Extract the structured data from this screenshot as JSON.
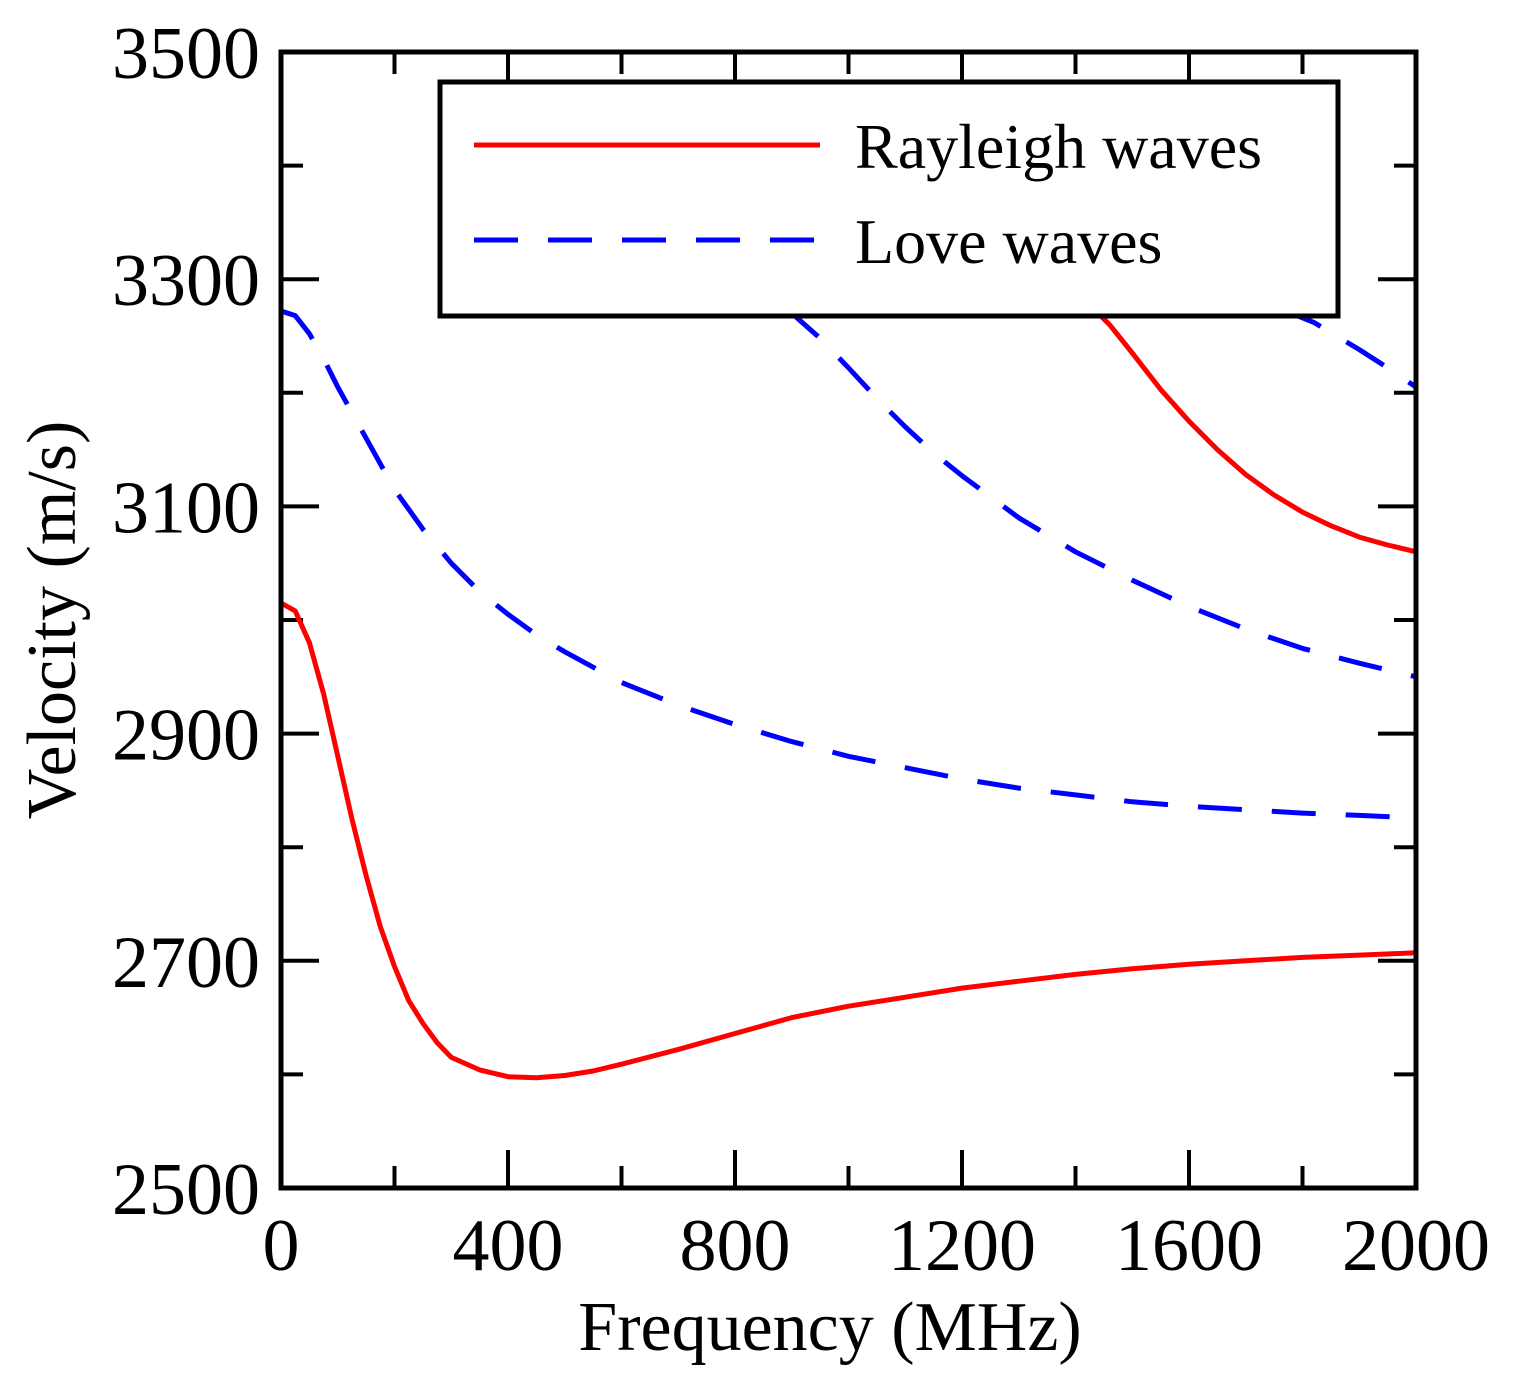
{
  "chart_data": {
    "type": "line",
    "title": "",
    "xlabel": "Frequency (MHz)",
    "ylabel": "Velocity (m/s)",
    "xlim": [
      0,
      2000
    ],
    "ylim": [
      2500,
      3500
    ],
    "xticks": [
      0,
      400,
      800,
      1200,
      1600,
      2000
    ],
    "xtick_labels": [
      "0",
      "400",
      "800",
      "1200",
      "1600",
      "2000"
    ],
    "yticks": [
      2500,
      2700,
      2900,
      3100,
      3300,
      3500
    ],
    "ytick_labels": [
      "2500",
      "2700",
      "2900",
      "3100",
      "3300",
      "3500"
    ],
    "grid": false,
    "legend_position": "top-right",
    "series": [
      {
        "name": "Rayleigh waves",
        "legend_label": "Rayleigh waves",
        "color": "#ff0000",
        "style": "solid",
        "segments": [
          [
            [
              0,
              3015
            ],
            [
              25,
              3008
            ],
            [
              50,
              2980
            ],
            [
              75,
              2935
            ],
            [
              100,
              2880
            ],
            [
              125,
              2825
            ],
            [
              150,
              2775
            ],
            [
              175,
              2730
            ],
            [
              200,
              2695
            ],
            [
              225,
              2665
            ],
            [
              250,
              2645
            ],
            [
              275,
              2628
            ],
            [
              300,
              2615
            ],
            [
              350,
              2604
            ],
            [
              400,
              2598
            ],
            [
              450,
              2597
            ],
            [
              500,
              2599
            ],
            [
              550,
              2603
            ],
            [
              600,
              2609
            ],
            [
              700,
              2622
            ],
            [
              800,
              2636
            ],
            [
              900,
              2650
            ],
            [
              1000,
              2660
            ],
            [
              1100,
              2668
            ],
            [
              1200,
              2676
            ],
            [
              1300,
              2682
            ],
            [
              1400,
              2688
            ],
            [
              1500,
              2693
            ],
            [
              1600,
              2697
            ],
            [
              1700,
              2700
            ],
            [
              1800,
              2703
            ],
            [
              1900,
              2705
            ],
            [
              2000,
              2707
            ]
          ],
          [
            [
              1420,
              3272
            ],
            [
              1440,
              3270
            ],
            [
              1460,
              3260
            ],
            [
              1500,
              3235
            ],
            [
              1550,
              3203
            ],
            [
              1600,
              3175
            ],
            [
              1650,
              3150
            ],
            [
              1700,
              3128
            ],
            [
              1750,
              3110
            ],
            [
              1800,
              3095
            ],
            [
              1850,
              3083
            ],
            [
              1900,
              3073
            ],
            [
              1950,
              3066
            ],
            [
              2000,
              3060
            ]
          ]
        ]
      },
      {
        "name": "Love waves",
        "legend_label": "Love waves",
        "color": "#0000ff",
        "style": "dashed",
        "segments": [
          [
            [
              0,
              3272
            ],
            [
              25,
              3268
            ],
            [
              50,
              3252
            ],
            [
              75,
              3230
            ],
            [
              100,
              3205
            ],
            [
              150,
              3160
            ],
            [
              200,
              3115
            ],
            [
              250,
              3080
            ],
            [
              300,
              3050
            ],
            [
              350,
              3025
            ],
            [
              400,
              3005
            ],
            [
              450,
              2987
            ],
            [
              500,
              2972
            ],
            [
              600,
              2945
            ],
            [
              700,
              2925
            ],
            [
              800,
              2908
            ],
            [
              900,
              2893
            ],
            [
              1000,
              2880
            ],
            [
              1100,
              2870
            ],
            [
              1200,
              2860
            ],
            [
              1300,
              2852
            ],
            [
              1400,
              2846
            ],
            [
              1500,
              2840
            ],
            [
              1600,
              2836
            ],
            [
              1700,
              2833
            ],
            [
              1800,
              2830
            ],
            [
              1900,
              2828
            ],
            [
              1990,
              2826
            ]
          ],
          [
            [
              885,
              3272
            ],
            [
              900,
              3270
            ],
            [
              950,
              3248
            ],
            [
              1000,
              3222
            ],
            [
              1050,
              3195
            ],
            [
              1100,
              3170
            ],
            [
              1150,
              3147
            ],
            [
              1200,
              3127
            ],
            [
              1300,
              3090
            ],
            [
              1400,
              3060
            ],
            [
              1500,
              3035
            ],
            [
              1600,
              3012
            ],
            [
              1700,
              2992
            ],
            [
              1800,
              2975
            ],
            [
              1900,
              2962
            ],
            [
              2000,
              2950
            ]
          ],
          [
            [
              1760,
              3272
            ],
            [
              1780,
              3270
            ],
            [
              1820,
              3262
            ],
            [
              1860,
              3250
            ],
            [
              1900,
              3238
            ],
            [
              1950,
              3222
            ],
            [
              2000,
              3205
            ]
          ]
        ]
      }
    ]
  }
}
